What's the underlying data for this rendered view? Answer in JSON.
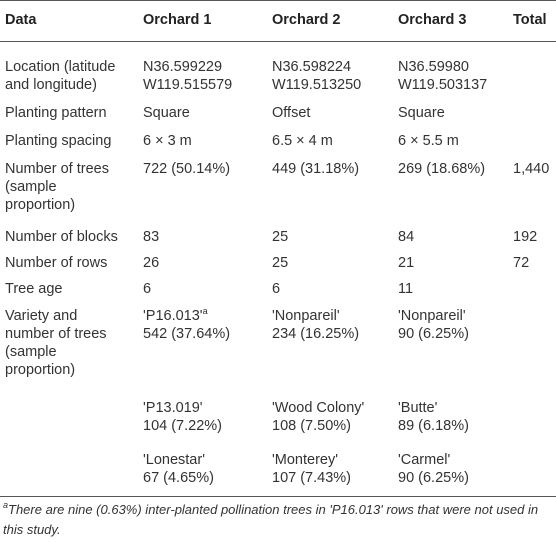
{
  "table": {
    "header": [
      "Data",
      "Orchard 1",
      "Orchard 2",
      "Orchard 3",
      "Total"
    ],
    "note_ref": "a",
    "rows": [
      [
        [
          "Location (latitude",
          "and longitude)"
        ],
        [
          "N36.599229",
          "W119.515579"
        ],
        [
          "N36.598224",
          "W119.513250"
        ],
        [
          "N36.59980",
          "W119.503137"
        ],
        null
      ],
      [
        [
          "Planting pattern"
        ],
        [
          "Square"
        ],
        [
          "Offset"
        ],
        [
          "Square"
        ],
        null
      ],
      [
        [
          "Planting spacing"
        ],
        [
          "6 × 3 m"
        ],
        [
          "6.5 × 4 m"
        ],
        [
          "6 × 5.5 m"
        ],
        null
      ],
      [
        [
          "Number of trees",
          "(sample",
          "proportion)"
        ],
        [
          "722 (50.14%)"
        ],
        [
          "449 (31.18%)"
        ],
        [
          "269 (18.68%)"
        ],
        [
          "1,440"
        ]
      ],
      [
        [
          "Number of blocks"
        ],
        [
          "83"
        ],
        [
          "25"
        ],
        [
          "84"
        ],
        [
          "192"
        ]
      ],
      [
        [
          "Number of rows"
        ],
        [
          "26"
        ],
        [
          "25"
        ],
        [
          "21"
        ],
        [
          "72"
        ]
      ],
      [
        [
          "Tree age"
        ],
        [
          "6"
        ],
        [
          "6"
        ],
        [
          "11"
        ],
        null
      ],
      [
        [
          "Variety and",
          "number of trees",
          "(sample",
          "proportion)"
        ],
        [
          "'P16.013'",
          "542 (37.64%)"
        ],
        [
          "'Nonpareil'",
          "234 (16.25%)"
        ],
        [
          "'Nonpareil'",
          "90 (6.25%)"
        ],
        null
      ],
      [
        null,
        [
          "'P13.019'",
          "104 (7.22%)"
        ],
        [
          "'Wood Colony'",
          "108 (7.50%)"
        ],
        [
          "'Butte'",
          "89 (6.18%)"
        ],
        null
      ],
      [
        null,
        [
          "'Lonestar'",
          "67 (4.65%)"
        ],
        [
          "'Monterey'",
          "107 (7.43%)"
        ],
        [
          "'Carmel'",
          "90 (6.25%)"
        ],
        null
      ]
    ]
  },
  "footnote": {
    "marker": "a",
    "text": "There are nine (0.63%) inter-planted pollination trees in 'P16.013' rows that were not used in this study."
  }
}
